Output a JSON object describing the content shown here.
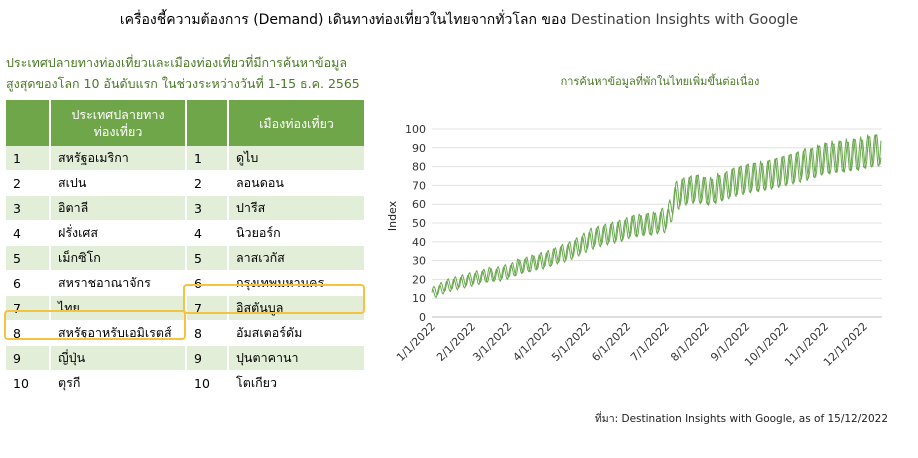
{
  "header": {
    "title": "เครื่องชี้ความต้องการ (Demand) เดินทางท่องเที่ยวในไทยจากทั่วโลก ของ",
    "brand": "Destination Insights with Google"
  },
  "table_section": {
    "subtitle_line1": "ประเทศปลายทางท่องเที่ยวและเมืองท่องเที่ยวที่มีการค้นหาข้อมูล",
    "subtitle_line2": "สูงสุดของโลก 10 อันดับแรก ในช่วงระหว่างวันที่ 1-15 ธ.ค. 2565",
    "col_country": "ประเทศปลายทาง ท่องเที่ยว",
    "col_city": "เมืองท่องเที่ยว",
    "rows": [
      {
        "rank": "1",
        "country": "สหรัฐอเมริกา",
        "rank2": "1",
        "city": "ดูไบ"
      },
      {
        "rank": "2",
        "country": "สเปน",
        "rank2": "2",
        "city": "ลอนดอน"
      },
      {
        "rank": "3",
        "country": "อิตาลี",
        "rank2": "3",
        "city": "ปารีส"
      },
      {
        "rank": "4",
        "country": "ฝรั่งเศส",
        "rank2": "4",
        "city": "นิวยอร์ก"
      },
      {
        "rank": "5",
        "country": "เม็กซิโก",
        "rank2": "5",
        "city": "ลาสเวกัส"
      },
      {
        "rank": "6",
        "country": "สหราชอาณาจักร",
        "rank2": "6",
        "city": "กรุงเทพมหานคร"
      },
      {
        "rank": "7",
        "country": "ไทย",
        "rank2": "7",
        "city": "อิสตันบูล"
      },
      {
        "rank": "8",
        "country": "สหรัฐอาหรับเอมิเรตส์",
        "rank2": "8",
        "city": "อัมสเตอร์ดัม"
      },
      {
        "rank": "9",
        "country": "ญี่ปุ่น",
        "rank2": "9",
        "city": "ปุนตาคานา"
      },
      {
        "rank": "10",
        "country": "ตุรกี",
        "rank2": "10",
        "city": "โตเกียว"
      }
    ],
    "highlight_color": "#f5c33f"
  },
  "chart_data": {
    "type": "line",
    "title": "การค้นหาข้อมูลที่พักในไทยเพิ่มขึ้นต่อเนื่อง",
    "ylabel": "Index",
    "xlabel": "",
    "ylim": [
      0,
      100
    ],
    "yticks": [
      "0",
      "10",
      "20",
      "30",
      "40",
      "50",
      "60",
      "70",
      "80",
      "90",
      "100"
    ],
    "x_range": [
      "2022-01-01",
      "2022-12-15"
    ],
    "xticks": [
      "1/1/2022",
      "2/1/2022",
      "3/1/2022",
      "4/1/2022",
      "5/1/2022",
      "6/1/2022",
      "7/1/2022",
      "8/1/2022",
      "9/1/2022",
      "10/1/2022",
      "11/1/2022",
      "12/1/2022"
    ],
    "grid": "horizontal",
    "line_color": "#6aa84f",
    "series": [
      {
        "values_weekly": [
          13,
          15,
          17,
          18,
          19,
          20,
          21,
          22,
          22,
          23,
          24,
          25,
          26,
          28,
          28,
          30,
          31,
          32,
          34,
          35,
          37,
          39,
          42,
          43,
          44,
          45,
          46,
          47,
          49,
          48,
          50,
          49,
          52,
          53,
          65,
          67,
          68,
          69,
          68,
          66,
          68,
          70,
          72,
          73,
          74,
          75,
          74,
          76,
          77,
          78,
          79,
          80,
          82,
          82,
          83,
          85,
          84,
          86,
          85,
          87,
          86,
          88,
          89,
          90
        ]
      },
      {
        "values_weekly": [
          12,
          14,
          16,
          17,
          18,
          19,
          20,
          21,
          23,
          22,
          23,
          24,
          27,
          27,
          29,
          29,
          30,
          32,
          33,
          34,
          36,
          38,
          40,
          42,
          43,
          44,
          45,
          46,
          48,
          49,
          49,
          50,
          50,
          51,
          62,
          66,
          67,
          68,
          67,
          67,
          69,
          69,
          71,
          72,
          73,
          74,
          75,
          75,
          76,
          77,
          78,
          79,
          80,
          81,
          83,
          84,
          85,
          85,
          86,
          86,
          87,
          88,
          88,
          89
        ]
      }
    ]
  },
  "source": "ที่มา: Destination Insights with Google, as of 15/12/2022"
}
